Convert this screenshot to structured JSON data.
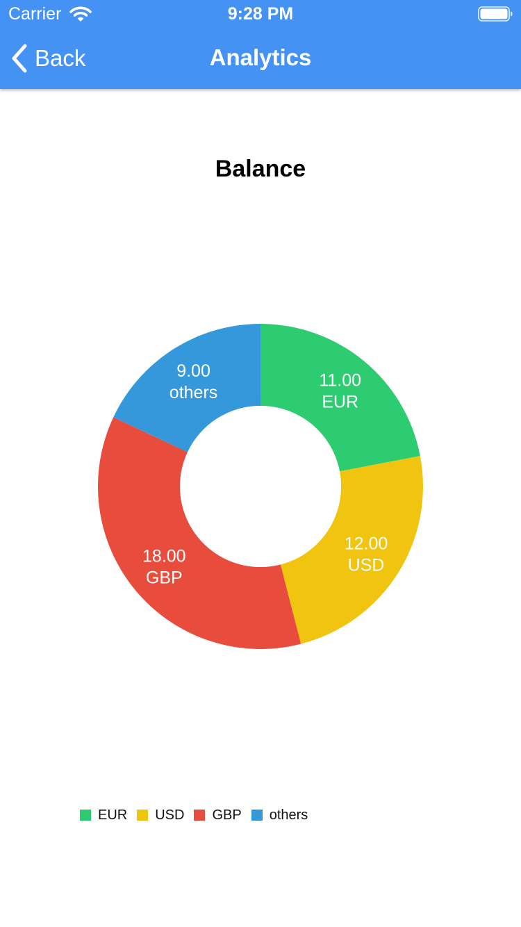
{
  "status_bar": {
    "carrier": "Carrier",
    "time": "9:28 PM",
    "icons": [
      "wifi-icon",
      "battery-icon"
    ]
  },
  "nav": {
    "back_label": "Back",
    "title": "Analytics",
    "back_icon": "chevron-left-icon"
  },
  "colors": {
    "header": "#4592f5",
    "EUR": "#2ecc71",
    "USD": "#f1c40f",
    "GBP": "#e74c3c",
    "others": "#3498db"
  },
  "chart_data": {
    "type": "pie",
    "style": "donut",
    "title": "Balance",
    "categories": [
      "EUR",
      "USD",
      "GBP",
      "others"
    ],
    "values": [
      11.0,
      12.0,
      18.0,
      9.0
    ],
    "value_labels": [
      "11.00",
      "12.00",
      "18.00",
      "9.00"
    ],
    "colors": [
      "#2ecc71",
      "#f1c40f",
      "#e74c3c",
      "#3498db"
    ],
    "legend_position": "bottom-left"
  }
}
